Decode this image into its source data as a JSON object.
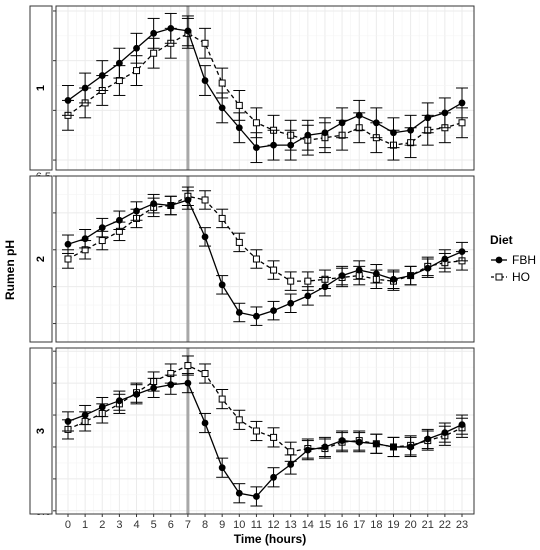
{
  "chart_data": {
    "type": "line",
    "xlabel": "Time (hours)",
    "ylabel": "Rumen pH",
    "x": [
      0,
      1,
      2,
      3,
      4,
      5,
      6,
      7,
      8,
      9,
      10,
      11,
      12,
      13,
      14,
      15,
      16,
      17,
      18,
      19,
      20,
      21,
      22,
      23
    ],
    "vline_x": 7,
    "grid": true,
    "legend": {
      "title": "Diet",
      "position": "right",
      "items": [
        {
          "label": "FBH",
          "marker": "filled-circle",
          "line": "solid"
        },
        {
          "label": "HO",
          "marker": "open-square",
          "line": "dashed"
        }
      ]
    },
    "panels": [
      {
        "strip": "1",
        "ylim": [
          5.76,
          6.42
        ],
        "yticks": [
          5.8,
          6.0,
          6.2,
          6.4
        ],
        "series": [
          {
            "name": "FBH",
            "values": [
              6.04,
              6.09,
              6.14,
              6.19,
              6.25,
              6.31,
              6.33,
              6.32,
              6.12,
              6.01,
              5.93,
              5.85,
              5.86,
              5.86,
              5.9,
              5.91,
              5.95,
              5.98,
              5.95,
              5.91,
              5.92,
              5.97,
              5.99,
              6.03
            ],
            "errors": [
              0.06,
              0.06,
              0.06,
              0.06,
              0.06,
              0.06,
              0.06,
              0.06,
              0.06,
              0.06,
              0.06,
              0.06,
              0.06,
              0.06,
              0.06,
              0.06,
              0.06,
              0.06,
              0.06,
              0.06,
              0.06,
              0.06,
              0.06,
              0.06
            ]
          },
          {
            "name": "HO",
            "values": [
              5.98,
              6.03,
              6.08,
              6.12,
              6.16,
              6.23,
              6.27,
              6.31,
              6.27,
              6.11,
              6.02,
              5.95,
              5.92,
              5.9,
              5.88,
              5.89,
              5.9,
              5.93,
              5.89,
              5.86,
              5.87,
              5.92,
              5.93,
              5.95
            ],
            "errors": [
              0.06,
              0.06,
              0.06,
              0.06,
              0.06,
              0.06,
              0.06,
              0.06,
              0.06,
              0.06,
              0.06,
              0.06,
              0.06,
              0.06,
              0.06,
              0.06,
              0.06,
              0.06,
              0.06,
              0.06,
              0.06,
              0.06,
              0.06,
              0.06
            ]
          }
        ]
      },
      {
        "strip": "2",
        "ylim": [
          5.6,
          6.5
        ],
        "yticks": [
          5.7,
          5.9,
          6.1,
          6.3,
          6.5
        ],
        "series": [
          {
            "name": "FBH",
            "values": [
              6.13,
              6.16,
              6.22,
              6.26,
              6.31,
              6.35,
              6.34,
              6.37,
              6.17,
              5.91,
              5.76,
              5.74,
              5.77,
              5.81,
              5.85,
              5.9,
              5.96,
              5.99,
              5.97,
              5.94,
              5.96,
              6.0,
              6.05,
              6.09
            ],
            "errors": [
              0.05,
              0.05,
              0.05,
              0.05,
              0.05,
              0.05,
              0.05,
              0.05,
              0.05,
              0.05,
              0.05,
              0.05,
              0.05,
              0.05,
              0.05,
              0.05,
              0.05,
              0.05,
              0.05,
              0.05,
              0.05,
              0.05,
              0.05,
              0.05
            ]
          },
          {
            "name": "HO",
            "values": [
              6.05,
              6.1,
              6.15,
              6.2,
              6.27,
              6.33,
              6.34,
              6.39,
              6.37,
              6.27,
              6.14,
              6.05,
              5.99,
              5.93,
              5.93,
              5.94,
              5.95,
              5.96,
              5.94,
              5.93,
              5.96,
              6.01,
              6.03,
              6.04
            ],
            "errors": [
              0.05,
              0.05,
              0.05,
              0.05,
              0.05,
              0.05,
              0.05,
              0.05,
              0.05,
              0.05,
              0.05,
              0.05,
              0.05,
              0.05,
              0.05,
              0.05,
              0.05,
              0.05,
              0.05,
              0.05,
              0.05,
              0.05,
              0.05,
              0.05
            ]
          }
        ]
      },
      {
        "strip": "3",
        "ylim": [
          5.58,
          6.62
        ],
        "yticks": [
          5.6,
          5.8,
          6.0,
          6.2,
          6.4,
          6.6
        ],
        "series": [
          {
            "name": "FBH",
            "values": [
              6.16,
              6.2,
              6.25,
              6.29,
              6.33,
              6.37,
              6.39,
              6.4,
              6.15,
              5.87,
              5.71,
              5.69,
              5.81,
              5.89,
              5.98,
              6.0,
              6.04,
              6.03,
              6.02,
              6.0,
              6.0,
              6.05,
              6.09,
              6.14
            ],
            "errors": [
              0.06,
              0.06,
              0.06,
              0.06,
              0.06,
              0.06,
              0.06,
              0.06,
              0.06,
              0.06,
              0.06,
              0.06,
              0.06,
              0.06,
              0.06,
              0.06,
              0.06,
              0.06,
              0.06,
              0.06,
              0.06,
              0.06,
              0.06,
              0.06
            ]
          },
          {
            "name": "HO",
            "values": [
              6.11,
              6.16,
              6.21,
              6.27,
              6.34,
              6.41,
              6.46,
              6.51,
              6.46,
              6.3,
              6.17,
              6.1,
              6.06,
              5.97,
              5.99,
              5.99,
              6.03,
              6.04,
              6.02,
              6.0,
              6.01,
              6.04,
              6.07,
              6.12
            ],
            "errors": [
              0.06,
              0.06,
              0.06,
              0.06,
              0.06,
              0.06,
              0.06,
              0.06,
              0.06,
              0.06,
              0.06,
              0.06,
              0.06,
              0.06,
              0.06,
              0.06,
              0.06,
              0.06,
              0.06,
              0.06,
              0.06,
              0.06,
              0.06,
              0.06
            ]
          }
        ]
      }
    ]
  }
}
